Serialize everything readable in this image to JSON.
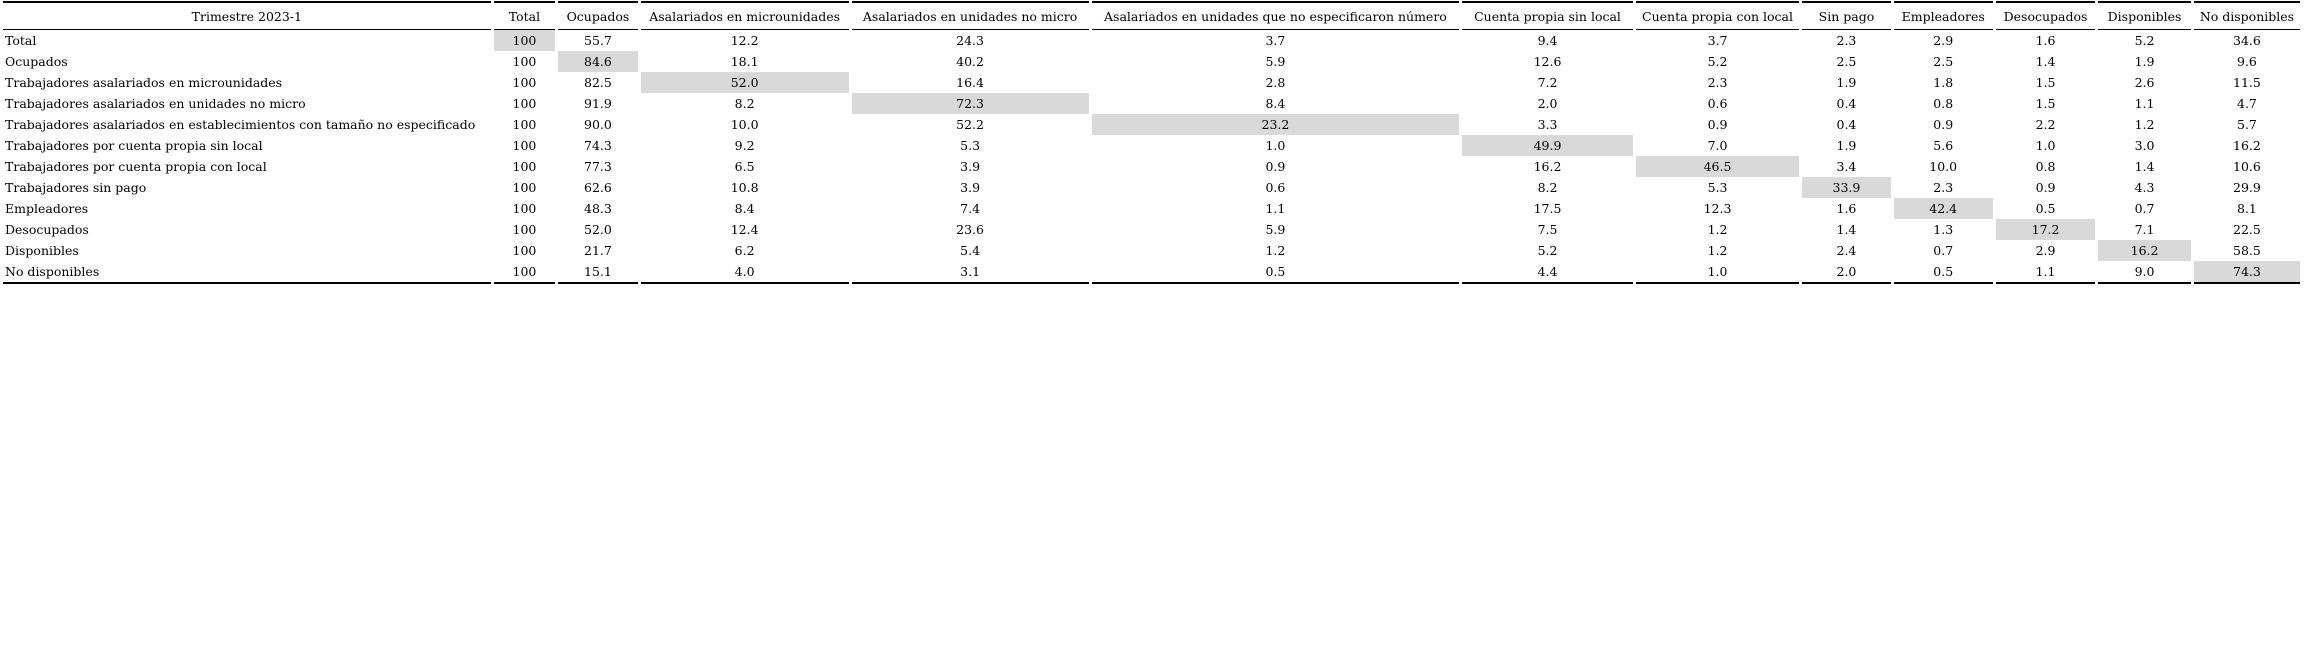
{
  "chart_data": {
    "type": "table",
    "title": "Trimestre 2023-1",
    "corner_header": "Trimestre 2023-1",
    "columns": [
      "Total",
      "Ocupados",
      "Asalariados en microunidades",
      "Asalariados en unidades no micro",
      "Asalariados en unidades que no especificaron número",
      "Cuenta propia sin local",
      "Cuenta propia con local",
      "Sin pago",
      "Empleadores",
      "Desocupados",
      "Disponibles",
      "No disponibles"
    ],
    "rows": [
      {
        "label": "Total",
        "values": [
          "100",
          "55.7",
          "12.2",
          "24.3",
          "3.7",
          "9.4",
          "3.7",
          "2.3",
          "2.9",
          "1.6",
          "5.2",
          "34.6"
        ],
        "highlight_col": 0
      },
      {
        "label": "Ocupados",
        "values": [
          "100",
          "84.6",
          "18.1",
          "40.2",
          "5.9",
          "12.6",
          "5.2",
          "2.5",
          "2.5",
          "1.4",
          "1.9",
          "9.6"
        ],
        "highlight_col": 1
      },
      {
        "label": "Trabajadores asalariados en microunidades",
        "values": [
          "100",
          "82.5",
          "52.0",
          "16.4",
          "2.8",
          "7.2",
          "2.3",
          "1.9",
          "1.8",
          "1.5",
          "2.6",
          "11.5"
        ],
        "highlight_col": 2
      },
      {
        "label": "Trabajadores asalariados en unidades no micro",
        "values": [
          "100",
          "91.9",
          "8.2",
          "72.3",
          "8.4",
          "2.0",
          "0.6",
          "0.4",
          "0.8",
          "1.5",
          "1.1",
          "4.7"
        ],
        "highlight_col": 3
      },
      {
        "label": "Trabajadores asalariados en establecimientos con tamaño no especificado",
        "values": [
          "100",
          "90.0",
          "10.0",
          "52.2",
          "23.2",
          "3.3",
          "0.9",
          "0.4",
          "0.9",
          "2.2",
          "1.2",
          "5.7"
        ],
        "highlight_col": 4
      },
      {
        "label": "Trabajadores por cuenta propia sin local",
        "values": [
          "100",
          "74.3",
          "9.2",
          "5.3",
          "1.0",
          "49.9",
          "7.0",
          "1.9",
          "5.6",
          "1.0",
          "3.0",
          "16.2"
        ],
        "highlight_col": 5
      },
      {
        "label": "Trabajadores por cuenta propia con local",
        "values": [
          "100",
          "77.3",
          "6.5",
          "3.9",
          "0.9",
          "16.2",
          "46.5",
          "3.4",
          "10.0",
          "0.8",
          "1.4",
          "10.6"
        ],
        "highlight_col": 6
      },
      {
        "label": "Trabajadores sin pago",
        "values": [
          "100",
          "62.6",
          "10.8",
          "3.9",
          "0.6",
          "8.2",
          "5.3",
          "33.9",
          "2.3",
          "0.9",
          "4.3",
          "29.9"
        ],
        "highlight_col": 7
      },
      {
        "label": "Empleadores",
        "values": [
          "100",
          "48.3",
          "8.4",
          "7.4",
          "1.1",
          "17.5",
          "12.3",
          "1.6",
          "42.4",
          "0.5",
          "0.7",
          "8.1"
        ],
        "highlight_col": 8
      },
      {
        "label": "Desocupados",
        "values": [
          "100",
          "52.0",
          "12.4",
          "23.6",
          "5.9",
          "7.5",
          "1.2",
          "1.4",
          "1.3",
          "17.2",
          "7.1",
          "22.5"
        ],
        "highlight_col": 9
      },
      {
        "label": "Disponibles",
        "values": [
          "100",
          "21.7",
          "6.2",
          "5.4",
          "1.2",
          "5.2",
          "1.2",
          "2.4",
          "0.7",
          "2.9",
          "16.2",
          "58.5"
        ],
        "highlight_col": 10
      },
      {
        "label": "No disponibles",
        "values": [
          "100",
          "15.1",
          "4.0",
          "3.1",
          "0.5",
          "4.4",
          "1.0",
          "2.0",
          "0.5",
          "1.1",
          "9.0",
          "74.3"
        ],
        "highlight_col": 11
      }
    ],
    "layout_hints": {
      "highlight_color": "#d9d9d9",
      "highlight_meaning": "diagonal cell (same category row/column) shaded",
      "value_alignment": "center",
      "label_alignment": "left",
      "grid": "horizontal rules above header, below header and below last row only"
    }
  }
}
